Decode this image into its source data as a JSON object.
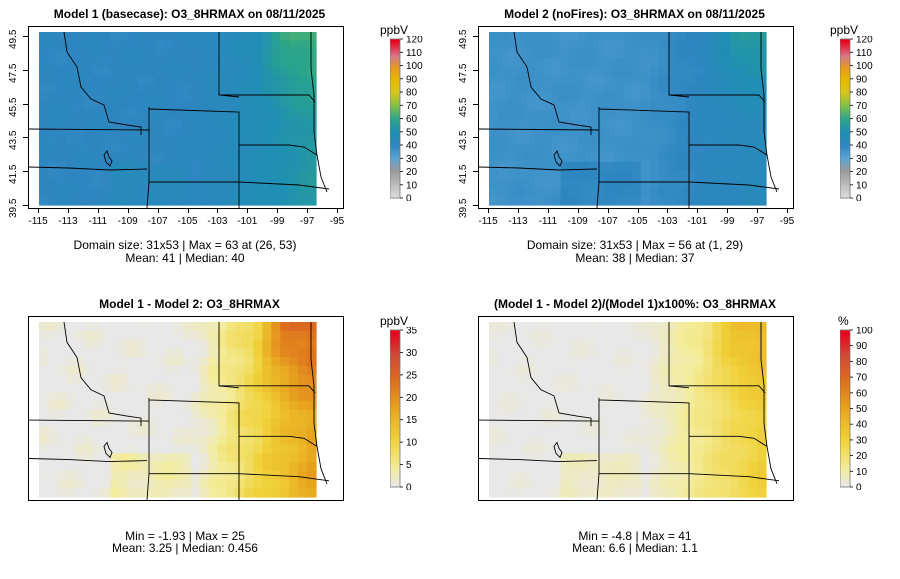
{
  "chart_data": [
    {
      "type": "heatmap",
      "title": "Model 1 (basecase): O3_8HRMAX on 08/11/2025",
      "units": "ppbV",
      "colorbar_ticks": [
        "0",
        "10",
        "20",
        "30",
        "40",
        "50",
        "60",
        "70",
        "80",
        "90",
        "100",
        "110",
        "120"
      ],
      "colorbar_range": [
        0,
        120
      ],
      "x_ticks": [
        "-115",
        "-113",
        "-111",
        "-109",
        "-107",
        "-105",
        "-103",
        "-101",
        "-99",
        "-97",
        "-95"
      ],
      "y_ticks": [
        "39.5",
        "41.5",
        "43.5",
        "45.5",
        "47.5",
        "49.5"
      ],
      "field": {
        "background": 41,
        "west": 40,
        "east_max": 63,
        "east_mid": 55,
        "south_patches": 50
      },
      "stats_line1": "Domain size: 31x53 | Max = 63 at (26, 53)",
      "stats_line2": "Mean: 41 |  Median: 40"
    },
    {
      "type": "heatmap",
      "title": "Model 2 (noFires): O3_8HRMAX on 08/11/2025",
      "units": "ppbV",
      "colorbar_ticks": [
        "0",
        "10",
        "20",
        "30",
        "40",
        "50",
        "60",
        "70",
        "80",
        "90",
        "100",
        "110",
        "120"
      ],
      "colorbar_range": [
        0,
        120
      ],
      "x_ticks": [
        "-115",
        "-113",
        "-111",
        "-109",
        "-107",
        "-105",
        "-103",
        "-101",
        "-99",
        "-97",
        "-95"
      ],
      "y_ticks": [
        "39.5",
        "41.5",
        "43.5",
        "45.5",
        "47.5",
        "49.5"
      ],
      "field": {
        "background": 38,
        "west": 36,
        "east_max": 56,
        "east_mid": 45,
        "south_patches": 45
      },
      "stats_line1": "Domain size: 31x53 | Max = 56 at (1, 29)",
      "stats_line2": "Mean: 38 |  Median: 37"
    },
    {
      "type": "heatmap",
      "title": "Model 1 - Model 2: O3_8HRMAX",
      "units": "ppbV",
      "colorbar_ticks": [
        "0",
        "5",
        "10",
        "15",
        "20",
        "25",
        "30",
        "35"
      ],
      "colorbar_range": [
        0,
        35
      ],
      "field": {
        "background": 0,
        "west": 0,
        "east_max": 25,
        "east_mid": 18,
        "south_patches": 8
      },
      "stats_line1": "Min = -1.93 | Max = 25",
      "stats_line2": "Mean: 3.25 |  Median: 0.456"
    },
    {
      "type": "heatmap",
      "title": "(Model 1 - Model 2)/(Model 1)x100%: O3_8HRMAX",
      "units": "%",
      "colorbar_ticks": [
        "0",
        "10",
        "20",
        "30",
        "40",
        "50",
        "60",
        "70",
        "80",
        "90",
        "100"
      ],
      "colorbar_range": [
        0,
        100
      ],
      "field": {
        "background": 0,
        "west": 0,
        "east_max": 41,
        "east_mid": 32,
        "south_patches": 15
      },
      "stats_line1": "Min = -4.8 | Max = 41",
      "stats_line2": "Mean: 6.6 |  Median: 1.1"
    }
  ]
}
